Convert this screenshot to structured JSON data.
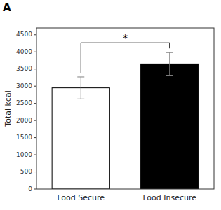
{
  "chart_data": {
    "type": "bar",
    "categories": [
      "Food Secure",
      "Food Insecure"
    ],
    "values": [
      2950,
      3650
    ],
    "errors": [
      320,
      330
    ],
    "colors": [
      "white",
      "black"
    ],
    "ylabel": "Total kcal",
    "ylim": [
      0,
      4700
    ],
    "yticks": [
      0,
      500,
      1000,
      1500,
      2000,
      2500,
      3000,
      3500,
      4000,
      4500
    ],
    "panel_label": "A",
    "significance_label": "*"
  }
}
